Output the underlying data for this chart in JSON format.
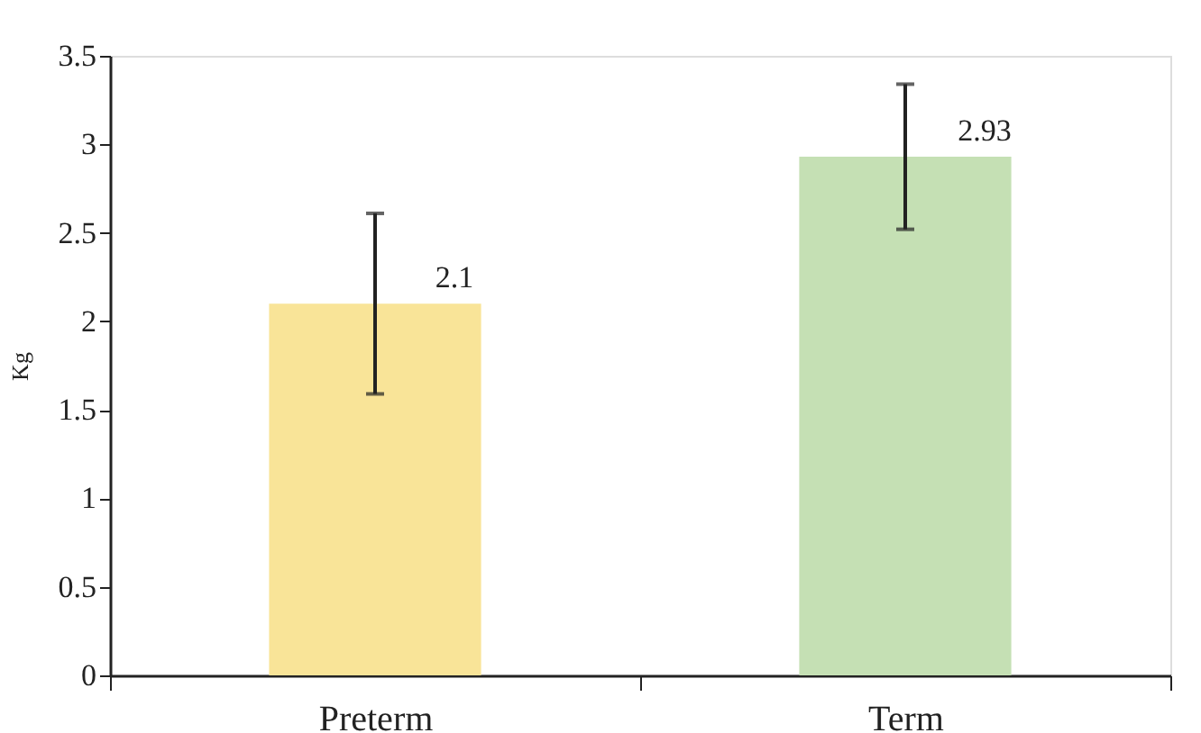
{
  "chart_data": {
    "type": "bar",
    "ylabel": "Kg",
    "categories": [
      "Preterm",
      "Term"
    ],
    "values": [
      2.1,
      2.93
    ],
    "colors": [
      "#f9e498",
      "#c5e0b4"
    ],
    "errors": [
      0.51,
      0.41
    ],
    "ylim": [
      0,
      3.5
    ],
    "yticks": [
      0,
      0.5,
      1,
      1.5,
      2,
      2.5,
      3,
      3.5
    ],
    "data_labels": true,
    "grid": false
  }
}
